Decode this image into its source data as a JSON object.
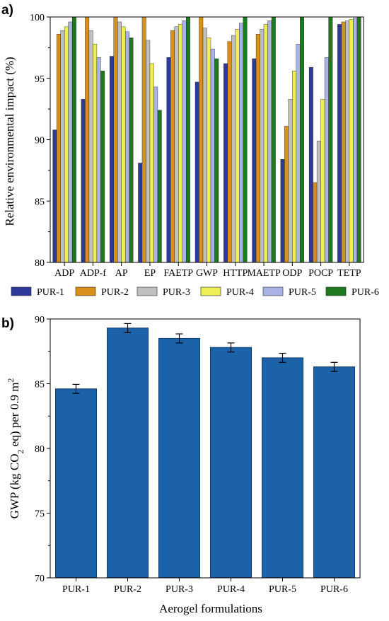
{
  "figure": {
    "panel_a_label": "a)",
    "panel_b_label": "b)"
  },
  "chart_data": [
    {
      "panel": "a)",
      "type": "bar",
      "ylabel": "Relative environmental impact (%)",
      "ylim": [
        80,
        100
      ],
      "yticks": [
        "80",
        "85",
        "90",
        "95",
        "100"
      ],
      "categories": [
        "ADP",
        "ADP-f",
        "AP",
        "EP",
        "FAETP",
        "GWP",
        "HTTP",
        "MAETP",
        "ODP",
        "POCP",
        "TETP"
      ],
      "legend_position": "bottom",
      "series": [
        {
          "name": "PUR-1",
          "color": "#2d3a9a",
          "values": [
            90.8,
            93.3,
            96.8,
            88.1,
            96.7,
            94.7,
            96.2,
            96.6,
            88.4,
            95.9,
            99.4
          ]
        },
        {
          "name": "PUR-2",
          "color": "#d9901a",
          "values": [
            98.6,
            100,
            100,
            100,
            98.9,
            100,
            98.0,
            98.6,
            91.1,
            86.5,
            99.6
          ]
        },
        {
          "name": "PUR-3",
          "color": "#c0c0c0",
          "values": [
            98.9,
            98.9,
            99.6,
            98.1,
            99.2,
            99.1,
            98.5,
            99.0,
            93.3,
            89.9,
            99.7
          ]
        },
        {
          "name": "PUR-4",
          "color": "#eeee55",
          "values": [
            99.2,
            97.8,
            99.2,
            96.2,
            99.4,
            98.3,
            99.0,
            99.4,
            95.6,
            93.3,
            99.8
          ]
        },
        {
          "name": "PUR-5",
          "color": "#a9b3e6",
          "values": [
            99.6,
            96.7,
            98.8,
            94.3,
            99.7,
            97.4,
            99.5,
            99.7,
            97.8,
            96.7,
            99.9
          ]
        },
        {
          "name": "PUR-6",
          "color": "#1f7a1f",
          "values": [
            100,
            95.6,
            98.3,
            92.4,
            100,
            96.6,
            100,
            100,
            100,
            100,
            100
          ]
        }
      ]
    },
    {
      "panel": "b)",
      "type": "bar",
      "xlabel": "Aerogel formulations",
      "ylabel_parts": [
        "GWP (kg CO",
        "2",
        " eq) per 0.9 m",
        "2"
      ],
      "ylim": [
        70,
        90
      ],
      "yticks": [
        "70",
        "75",
        "80",
        "85",
        "90"
      ],
      "categories": [
        "PUR-1",
        "PUR-2",
        "PUR-3",
        "PUR-4",
        "PUR-5",
        "PUR-6"
      ],
      "color": "#1b62a8",
      "values": [
        84.6,
        89.3,
        88.5,
        87.8,
        87.0,
        86.3
      ],
      "errors": [
        0.35,
        0.35,
        0.35,
        0.35,
        0.35,
        0.35
      ]
    }
  ]
}
